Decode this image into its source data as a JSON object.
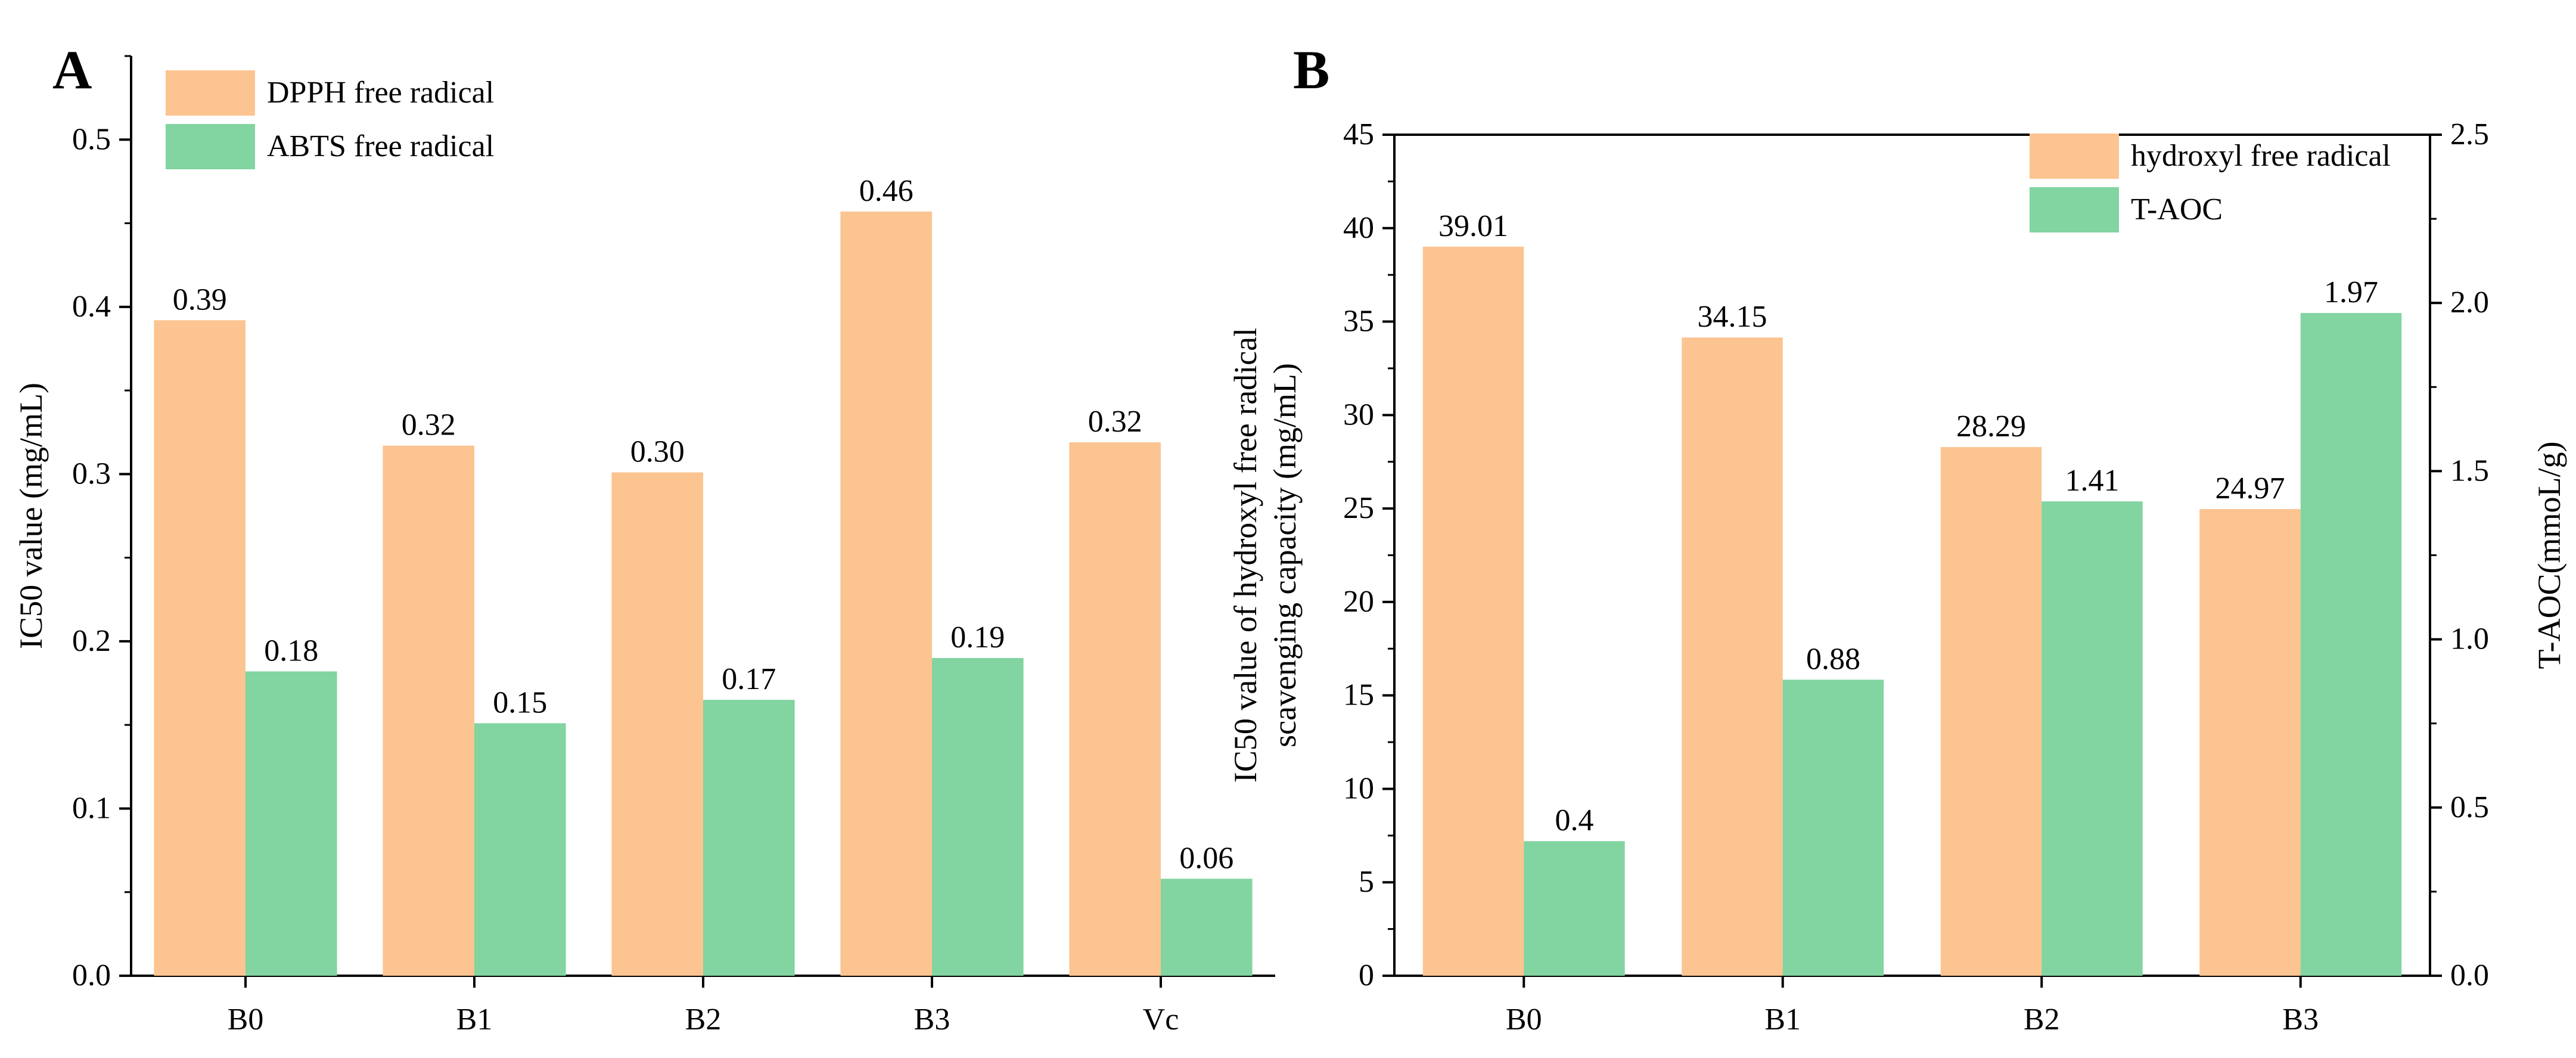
{
  "colors": {
    "orange": "#fcc491",
    "green": "#82d4a0",
    "axis": "#000000"
  },
  "chart_data": [
    {
      "type": "bar",
      "panel_label": "A",
      "title": "",
      "xlabel": "",
      "ylabel": "IC50 value (mg/mL)",
      "ylim": [
        0,
        0.55
      ],
      "yticks": [
        "0.0",
        "0.1",
        "0.2",
        "0.3",
        "0.4",
        "0.5"
      ],
      "categories": [
        "B0",
        "B1",
        "B2",
        "B3",
        "Vc"
      ],
      "series": [
        {
          "name": "DPPH free radical",
          "color": "#fcc491",
          "values": [
            0.392,
            0.317,
            0.301,
            0.457,
            0.319
          ],
          "labels": [
            "0.39",
            "0.32",
            "0.30",
            "0.46",
            "0.32"
          ]
        },
        {
          "name": "ABTS free radical",
          "color": "#82d4a0",
          "values": [
            0.182,
            0.151,
            0.165,
            0.19,
            0.058
          ],
          "labels": [
            "0.18",
            "0.15",
            "0.17",
            "0.19",
            "0.06"
          ]
        }
      ],
      "legend_position": "top-left"
    },
    {
      "type": "bar",
      "panel_label": "B",
      "title": "",
      "xlabel": "",
      "ylabel_lines": [
        "IC50 value of hydroxyl free radical",
        "scavenging capacity (mg/mL)"
      ],
      "ylabel_right": "T-AOC(mmoL/g)",
      "ylim": [
        0,
        45
      ],
      "yticks": [
        "0",
        "5",
        "10",
        "15",
        "20",
        "25",
        "30",
        "35",
        "40",
        "45"
      ],
      "ylim_right": [
        0,
        2.5
      ],
      "yticks_right": [
        "0.0",
        "0.5",
        "1.0",
        "1.5",
        "2.0",
        "2.5"
      ],
      "categories": [
        "B0",
        "B1",
        "B2",
        "B3"
      ],
      "series": [
        {
          "name": "hydroxyl free radical",
          "color": "#fcc491",
          "axis": "left",
          "values": [
            39.01,
            34.15,
            28.29,
            24.97
          ],
          "labels": [
            "39.01",
            "34.15",
            "28.29",
            "24.97"
          ]
        },
        {
          "name": "T-AOC",
          "color": "#82d4a0",
          "axis": "right",
          "values": [
            0.4,
            0.88,
            1.41,
            1.97
          ],
          "labels": [
            "0.4",
            "0.88",
            "1.41",
            "1.97"
          ]
        }
      ],
      "legend_position": "top-right"
    }
  ]
}
